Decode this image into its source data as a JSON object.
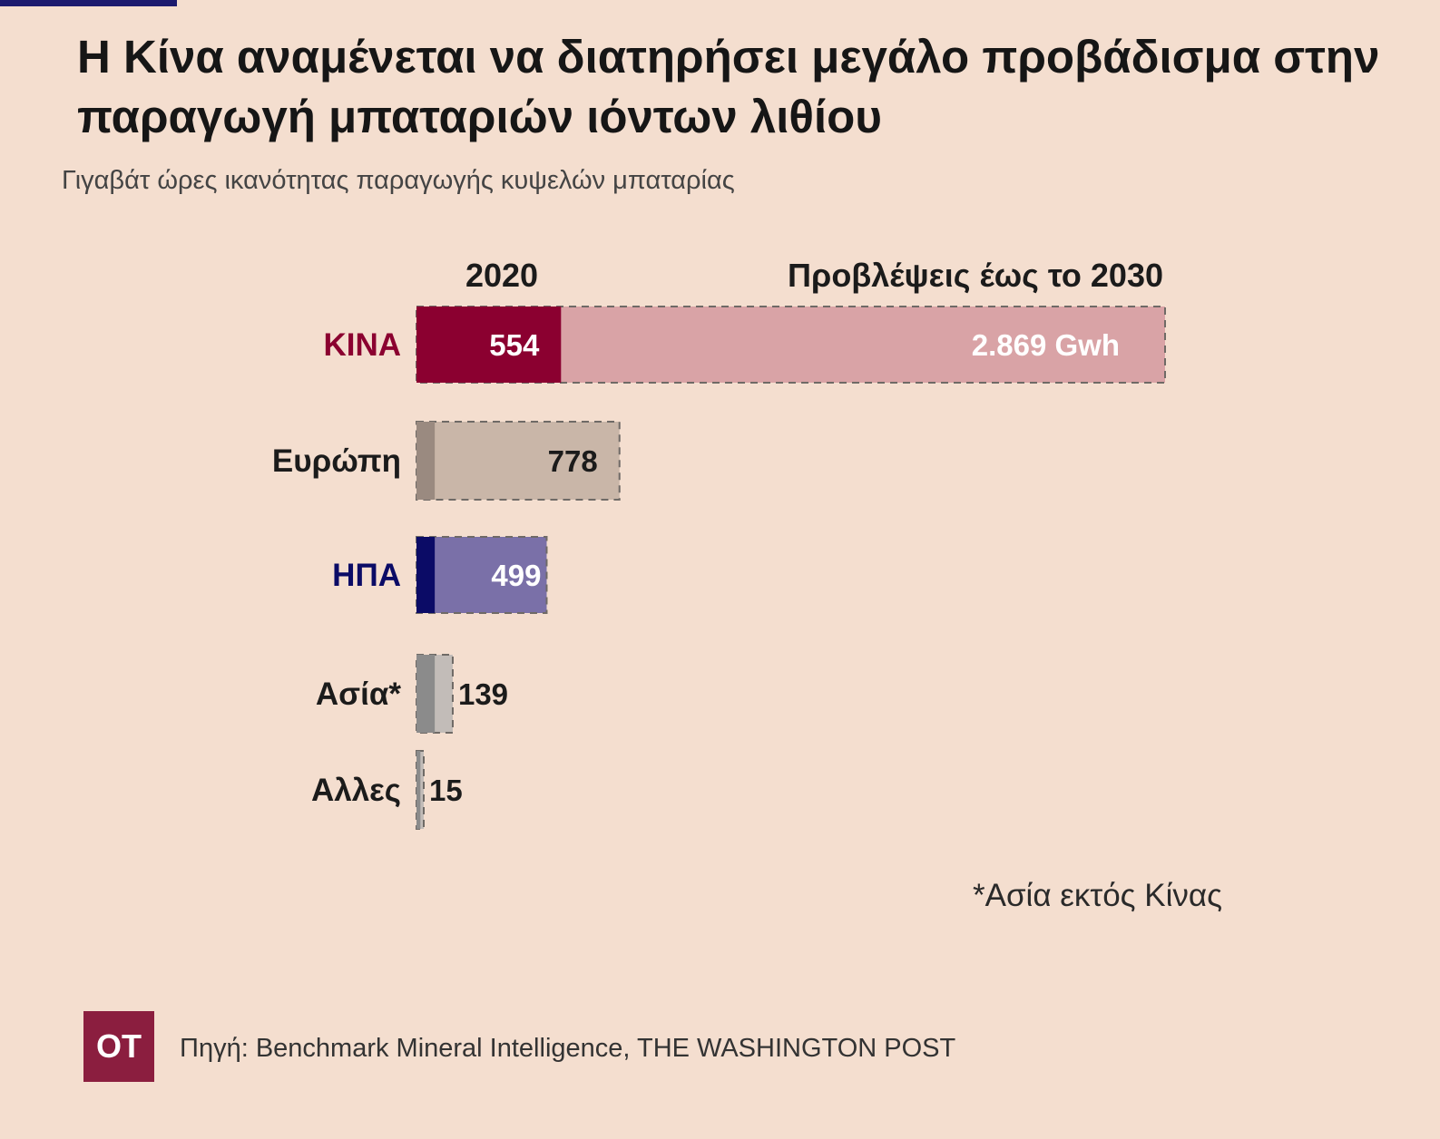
{
  "title": "Η Κίνα αναμένεται να διατηρήσει μεγάλο προβάδισμα στην παραγωγή μπαταριών ιόντων λιθίου",
  "subtitle": "Γιγαβάτ ώρες ικανότητας παραγωγής κυψελών μπαταρίας",
  "chart_data": {
    "type": "bar",
    "orientation": "horizontal",
    "legend": {
      "current_label": "2020",
      "forecast_label": "Προβλέψεις έως το 2030"
    },
    "categories": [
      "ΚΙΝΑ",
      "Ευρώπη",
      "ΗΠΑ",
      "Ασία*",
      "Αλλες"
    ],
    "series": [
      {
        "name": "2020",
        "values": [
          554,
          70,
          70,
          70,
          15
        ]
      },
      {
        "name": "Προβλέψεις έως το 2030",
        "values": [
          2869,
          778,
          499,
          139,
          15
        ]
      }
    ],
    "value_labels": [
      "2.869 Gwh",
      "778",
      "499",
      "139",
      "15"
    ],
    "current_value_labels": [
      "554",
      "",
      "",
      "",
      ""
    ],
    "colors": {
      "current": [
        "#8b0030",
        "#9a8a80",
        "#0b0b66",
        "#8b8b8b",
        "#8b8b8b"
      ],
      "forecast": [
        "#d9a3a6",
        "#c9b6a8",
        "#7a70a8",
        "#c2bcb8",
        "#c2bcb8"
      ],
      "labels": [
        "#8b0030",
        "#1b1b1b",
        "#0b0b66",
        "#1b1b1b",
        "#1b1b1b"
      ]
    }
  },
  "footnote": "*Ασία εκτός Κίνας",
  "logo_text": "ΟΤ",
  "source": "Πηγή: Benchmark Mineral Intelligence, THE WASHINGTON POST"
}
